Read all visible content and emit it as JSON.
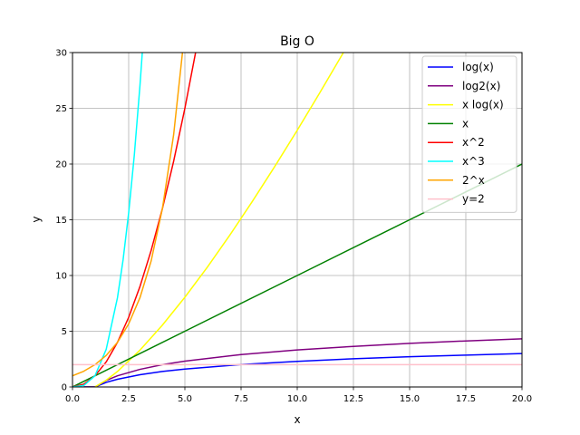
{
  "chart_data": {
    "type": "line",
    "title": "Big O",
    "xlabel": "x",
    "ylabel": "y",
    "xlim": [
      0,
      20
    ],
    "ylim": [
      0,
      30
    ],
    "grid": true,
    "legend_position": "top-right",
    "x_ticks": [
      "0.0",
      "2.5",
      "5.0",
      "7.5",
      "10.0",
      "12.5",
      "15.0",
      "17.5",
      "20.0"
    ],
    "y_ticks": [
      "0",
      "5",
      "10",
      "15",
      "20",
      "25",
      "30"
    ],
    "x_tick_values": [
      0,
      2.5,
      5,
      7.5,
      10,
      12.5,
      15,
      17.5,
      20
    ],
    "y_tick_values": [
      0,
      5,
      10,
      15,
      20,
      25,
      30
    ],
    "series": [
      {
        "name": "log(x)",
        "color": "#0000ff",
        "x": [
          0.5,
          1,
          1.5,
          2,
          3,
          4,
          5,
          7.5,
          10,
          12.5,
          15,
          17.5,
          20
        ],
        "y": [
          0.0,
          0.0,
          0.41,
          0.69,
          1.1,
          1.39,
          1.61,
          2.01,
          2.3,
          2.53,
          2.71,
          2.86,
          3.0
        ]
      },
      {
        "name": "log2(x)",
        "color": "#800080",
        "x": [
          0.5,
          1,
          1.5,
          2,
          3,
          4,
          5,
          7.5,
          10,
          12.5,
          15,
          17.5,
          20
        ],
        "y": [
          0.0,
          0.0,
          0.58,
          1.0,
          1.58,
          2.0,
          2.32,
          2.91,
          3.32,
          3.64,
          3.91,
          4.13,
          4.32
        ]
      },
      {
        "name": "x log(x)",
        "color": "#ffff00",
        "x": [
          1,
          1.5,
          2,
          3,
          4,
          5,
          6,
          7,
          8,
          9,
          10,
          11,
          12,
          12.5
        ],
        "y": [
          0.0,
          0.61,
          1.39,
          3.3,
          5.55,
          8.05,
          10.75,
          13.62,
          16.64,
          19.78,
          23.03,
          26.38,
          29.82,
          31.57
        ]
      },
      {
        "name": "x",
        "color": "#008000",
        "x": [
          0,
          5,
          10,
          15,
          20
        ],
        "y": [
          0,
          5,
          10,
          15,
          20
        ]
      },
      {
        "name": "x^2",
        "color": "#ff0000",
        "x": [
          0,
          0.5,
          1,
          1.5,
          2,
          2.5,
          3,
          3.5,
          4,
          4.5,
          5,
          5.5
        ],
        "y": [
          0,
          0.25,
          1,
          2.25,
          4,
          6.25,
          9,
          12.25,
          16,
          20.25,
          25,
          30.25
        ]
      },
      {
        "name": "x^3",
        "color": "#00ffff",
        "x": [
          0,
          0.5,
          1,
          1.5,
          2,
          2.25,
          2.5,
          2.75,
          3,
          3.15
        ],
        "y": [
          0,
          0.13,
          1,
          3.38,
          8,
          11.39,
          15.63,
          20.8,
          27,
          31.26
        ]
      },
      {
        "name": "2^x",
        "color": "#ffa500",
        "x": [
          0,
          0.5,
          1,
          1.5,
          2,
          2.5,
          3,
          3.5,
          4,
          4.5,
          5
        ],
        "y": [
          1,
          1.41,
          2,
          2.83,
          4,
          5.66,
          8,
          11.31,
          16,
          22.63,
          32
        ]
      },
      {
        "name": "y=2",
        "color": "#ffc0cb",
        "x": [
          0,
          20
        ],
        "y": [
          2,
          2
        ]
      }
    ]
  }
}
